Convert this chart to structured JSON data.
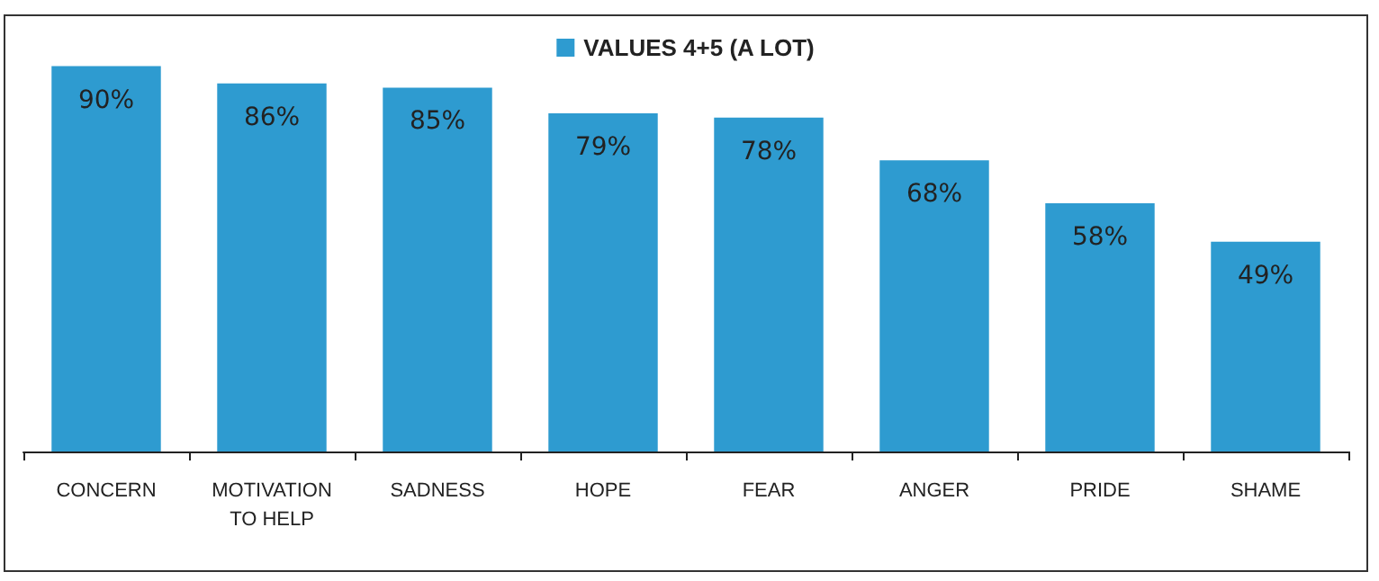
{
  "chart_data": {
    "type": "bar",
    "categories": [
      "CONCERN",
      "MOTIVATION\nTO HELP",
      "SADNESS",
      "HOPE",
      "FEAR",
      "ANGER",
      "PRIDE",
      "SHAME"
    ],
    "series": [
      {
        "name": "VALUES 4+5 (A LOT)",
        "color": "#2e9bd0",
        "values": [
          90,
          86,
          85,
          79,
          78,
          68,
          58,
          49
        ],
        "value_labels": [
          "90%",
          "86%",
          "85%",
          "79%",
          "78%",
          "68%",
          "58%",
          "49%"
        ]
      }
    ],
    "legend": "top",
    "grid": false
  }
}
